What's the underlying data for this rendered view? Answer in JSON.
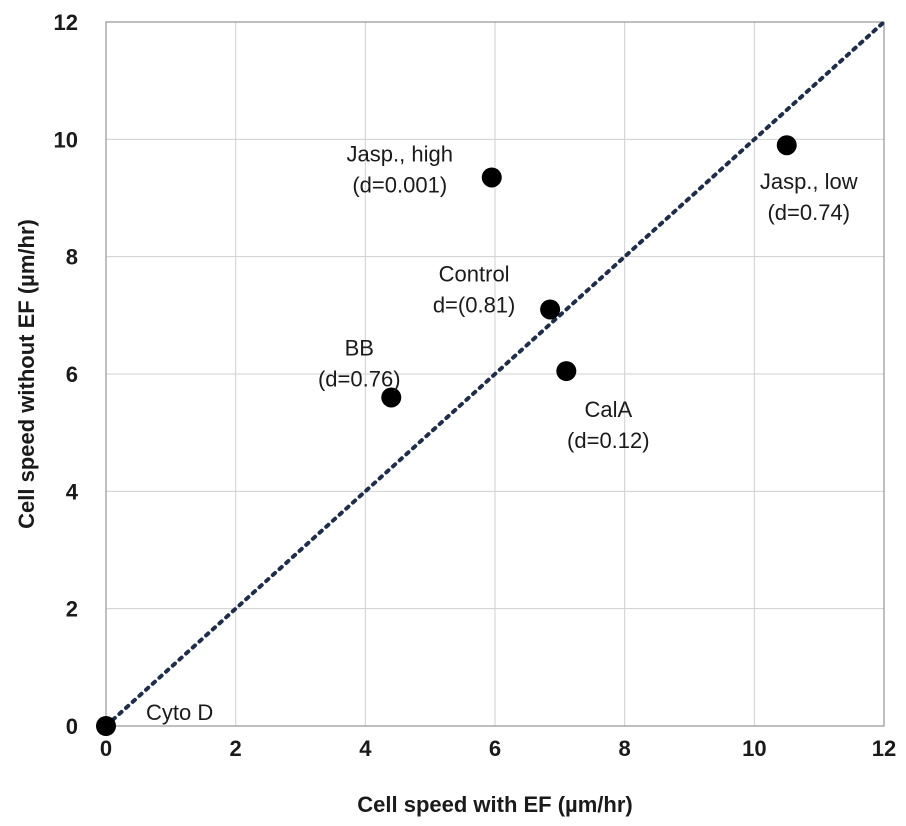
{
  "chart_data": {
    "type": "scatter",
    "xlabel": "Cell speed with EF (µm/hr)",
    "ylabel": "Cell speed without EF (µm/hr)",
    "xlim": [
      0,
      12
    ],
    "ylim": [
      0,
      12
    ],
    "xticks": [
      "0",
      "2",
      "4",
      "6",
      "8",
      "10",
      "12"
    ],
    "yticks": [
      "0",
      "2",
      "4",
      "6",
      "8",
      "10",
      "12"
    ],
    "grid": true,
    "reference_line": {
      "x": [
        0,
        12
      ],
      "y": [
        0,
        12
      ],
      "style": "dotted",
      "color": "#1f2d4d"
    },
    "marker_color": "#000000",
    "points": [
      {
        "x": 0.0,
        "y": 0.0,
        "label": [
          "Cyto D"
        ]
      },
      {
        "x": 4.4,
        "y": 5.6,
        "label": [
          "BB",
          "(d=0.76)"
        ]
      },
      {
        "x": 5.95,
        "y": 9.35,
        "label": [
          "Jasp., high",
          "(d=0.001)"
        ]
      },
      {
        "x": 6.85,
        "y": 7.1,
        "label": [
          "Control",
          "d=(0.81)"
        ]
      },
      {
        "x": 7.1,
        "y": 6.05,
        "label": [
          "CalA",
          "(d=0.12)"
        ]
      },
      {
        "x": 10.5,
        "y": 9.9,
        "label": [
          "Jasp., low",
          "(d=0.74)"
        ]
      }
    ]
  }
}
